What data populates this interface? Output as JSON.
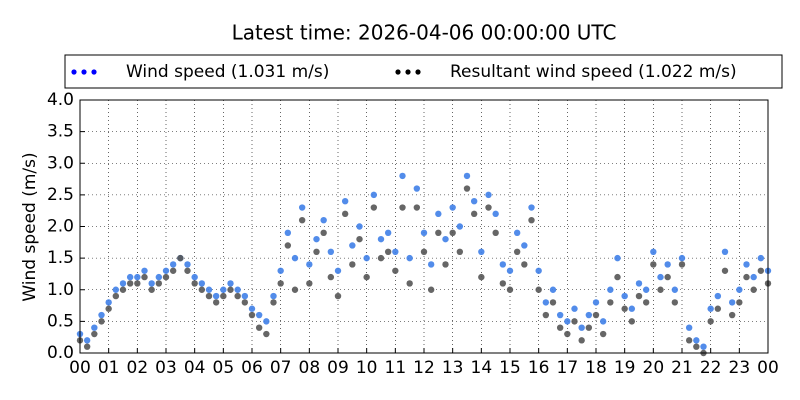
{
  "chart_data": {
    "type": "scatter",
    "title": "Latest time: 2026-04-06 00:00:00 UTC",
    "ylabel": "Wind speed (m/s)",
    "x": [
      0,
      0.25,
      0.5,
      0.75,
      1,
      1.25,
      1.5,
      1.75,
      2,
      2.25,
      2.5,
      2.75,
      3,
      3.25,
      3.5,
      3.75,
      4,
      4.25,
      4.5,
      4.75,
      5,
      5.25,
      5.5,
      5.75,
      6,
      6.25,
      6.5,
      6.75,
      7,
      7.25,
      7.5,
      7.75,
      8,
      8.25,
      8.5,
      8.75,
      9,
      9.25,
      9.5,
      9.75,
      10,
      10.25,
      10.5,
      10.75,
      11,
      11.25,
      11.5,
      11.75,
      12,
      12.25,
      12.5,
      12.75,
      13,
      13.25,
      13.5,
      13.75,
      14,
      14.25,
      14.5,
      14.75,
      15,
      15.25,
      15.5,
      15.75,
      16,
      16.25,
      16.5,
      16.75,
      17,
      17.25,
      17.5,
      17.75,
      18,
      18.25,
      18.5,
      18.75,
      19,
      19.25,
      19.5,
      19.75,
      20,
      20.25,
      20.5,
      20.75,
      21,
      21.25,
      21.5,
      21.75,
      22,
      22.25,
      22.5,
      22.75,
      23,
      23.25,
      23.5,
      23.75,
      24
    ],
    "series": [
      {
        "name": "Wind speed (1.031 m/s)",
        "color": "#3f7fe8",
        "values": [
          0.3,
          0.2,
          0.4,
          0.6,
          0.8,
          1.0,
          1.1,
          1.2,
          1.2,
          1.3,
          1.1,
          1.2,
          1.3,
          1.4,
          1.5,
          1.4,
          1.2,
          1.1,
          1.0,
          0.9,
          1.0,
          1.1,
          1.0,
          0.9,
          0.7,
          0.6,
          0.5,
          0.9,
          1.3,
          1.9,
          1.5,
          2.3,
          1.4,
          1.8,
          2.1,
          1.6,
          1.3,
          2.4,
          1.7,
          2.0,
          1.5,
          2.5,
          1.8,
          1.9,
          1.6,
          2.8,
          1.5,
          2.6,
          1.9,
          1.4,
          2.2,
          1.8,
          2.3,
          2.0,
          2.8,
          2.4,
          1.6,
          2.5,
          2.2,
          1.4,
          1.3,
          1.9,
          1.7,
          2.3,
          1.3,
          0.8,
          1.0,
          0.6,
          0.5,
          0.7,
          0.4,
          0.6,
          0.8,
          0.5,
          1.0,
          1.5,
          0.9,
          0.7,
          1.1,
          1.0,
          1.6,
          1.2,
          1.4,
          1.0,
          1.5,
          0.4,
          0.2,
          0.1,
          0.7,
          0.9,
          1.6,
          0.8,
          1.0,
          1.4,
          1.2,
          1.5,
          1.3
        ]
      },
      {
        "name": "Resultant wind speed (1.022 m/s)",
        "color": "#555555",
        "values": [
          0.2,
          0.1,
          0.3,
          0.5,
          0.7,
          0.9,
          1.0,
          1.1,
          1.1,
          1.2,
          1.0,
          1.1,
          1.2,
          1.3,
          1.5,
          1.3,
          1.1,
          1.0,
          0.9,
          0.8,
          0.9,
          1.0,
          0.9,
          0.8,
          0.6,
          0.4,
          0.3,
          0.8,
          1.1,
          1.7,
          1.0,
          2.1,
          1.1,
          1.6,
          1.9,
          1.2,
          0.9,
          2.2,
          1.4,
          1.8,
          1.2,
          2.3,
          1.5,
          1.6,
          1.3,
          2.3,
          1.1,
          2.3,
          1.6,
          1.0,
          1.9,
          1.4,
          1.9,
          1.6,
          2.6,
          2.2,
          1.2,
          2.3,
          1.9,
          1.1,
          1.0,
          1.6,
          1.4,
          2.1,
          1.0,
          0.6,
          0.8,
          0.4,
          0.3,
          0.5,
          0.2,
          0.4,
          0.6,
          0.3,
          0.8,
          1.2,
          0.7,
          0.5,
          0.9,
          0.8,
          1.4,
          1.0,
          1.2,
          0.8,
          1.4,
          0.2,
          0.1,
          0.0,
          0.5,
          0.7,
          1.3,
          0.6,
          0.8,
          1.2,
          1.0,
          1.3,
          1.1
        ]
      }
    ],
    "legend_colors": [
      "#0000ff",
      "#000000"
    ],
    "xlim": [
      0,
      24
    ],
    "xticks": [
      {
        "value": 0,
        "label": "00"
      },
      {
        "value": 1,
        "label": "01"
      },
      {
        "value": 2,
        "label": "02"
      },
      {
        "value": 3,
        "label": "03"
      },
      {
        "value": 4,
        "label": "04"
      },
      {
        "value": 5,
        "label": "05"
      },
      {
        "value": 6,
        "label": "06"
      },
      {
        "value": 7,
        "label": "07"
      },
      {
        "value": 8,
        "label": "08"
      },
      {
        "value": 9,
        "label": "09"
      },
      {
        "value": 10,
        "label": "10"
      },
      {
        "value": 11,
        "label": "11"
      },
      {
        "value": 12,
        "label": "12"
      },
      {
        "value": 13,
        "label": "13"
      },
      {
        "value": 14,
        "label": "14"
      },
      {
        "value": 15,
        "label": "15"
      },
      {
        "value": 16,
        "label": "16"
      },
      {
        "value": 17,
        "label": "17"
      },
      {
        "value": 18,
        "label": "18"
      },
      {
        "value": 19,
        "label": "19"
      },
      {
        "value": 20,
        "label": "20"
      },
      {
        "value": 21,
        "label": "21"
      },
      {
        "value": 22,
        "label": "22"
      },
      {
        "value": 23,
        "label": "23"
      },
      {
        "value": 24,
        "label": "00"
      }
    ],
    "ylim": [
      0,
      4
    ],
    "yticks": [
      {
        "value": 0,
        "label": "0.0"
      },
      {
        "value": 0.5,
        "label": "0.5"
      },
      {
        "value": 1,
        "label": "1.0"
      },
      {
        "value": 1.5,
        "label": "1.5"
      },
      {
        "value": 2,
        "label": "2.0"
      },
      {
        "value": 2.5,
        "label": "2.5"
      },
      {
        "value": 3,
        "label": "3.0"
      },
      {
        "value": 3.5,
        "label": "3.5"
      },
      {
        "value": 4,
        "label": "4.0"
      }
    ],
    "grid": true
  }
}
